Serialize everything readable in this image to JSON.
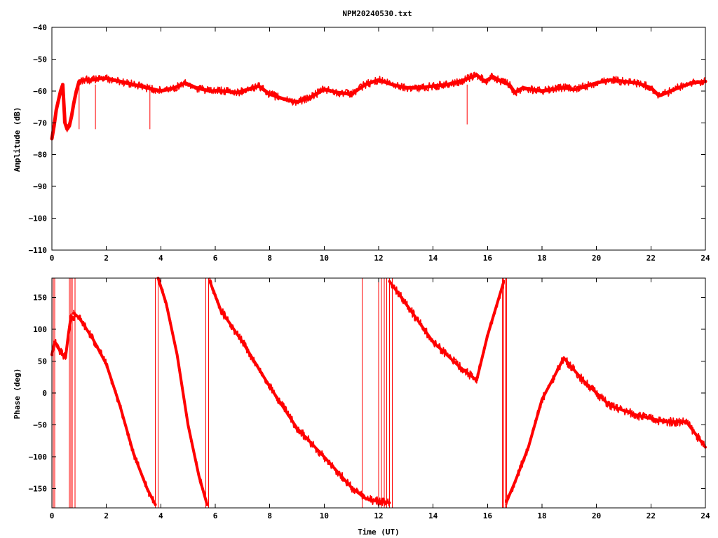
{
  "title": "NPM20240530.txt",
  "colors": {
    "series": "#ff0000",
    "axis": "#000000",
    "background": "#ffffff"
  },
  "chart_data": [
    {
      "type": "line",
      "panel": "amplitude",
      "xlabel": "",
      "ylabel": "Amplitude (dB)",
      "xlim": [
        0,
        24
      ],
      "ylim": [
        -110,
        -40
      ],
      "xticks": [
        0,
        2,
        4,
        6,
        8,
        10,
        12,
        14,
        16,
        18,
        20,
        22,
        24
      ],
      "yticks": [
        -110,
        -100,
        -90,
        -80,
        -70,
        -60,
        -50,
        -40
      ],
      "grid": false,
      "series": [
        {
          "color": "#ff0000",
          "x": [
            0,
            0.08,
            0.16,
            0.24,
            0.32,
            0.4,
            0.48,
            0.56,
            0.64,
            0.72,
            0.8,
            0.9,
            1.0,
            1.2,
            1.5,
            1.8,
            2.0,
            2.5,
            3.0,
            3.5,
            4.0,
            4.5,
            4.9,
            5.3,
            5.8,
            6.3,
            6.8,
            7.2,
            7.6,
            8.0,
            8.5,
            9.0,
            9.5,
            10.0,
            10.5,
            11.0,
            11.5,
            12.0,
            12.5,
            13.0,
            13.5,
            14.0,
            14.5,
            15.0,
            15.3,
            15.6,
            15.9,
            16.2,
            16.5,
            16.8,
            17.0,
            17.3,
            17.6,
            18.0,
            18.4,
            18.8,
            19.2,
            19.6,
            20.0,
            20.5,
            21.0,
            21.5,
            22.0,
            22.3,
            22.6,
            23.0,
            23.5,
            24.0
          ],
          "y": [
            -75,
            -71,
            -66,
            -63,
            -60,
            -58,
            -70,
            -72,
            -71,
            -68,
            -64,
            -60,
            -57,
            -56.5,
            -56.5,
            -56,
            -56,
            -57,
            -58,
            -59,
            -60,
            -59,
            -57.5,
            -59,
            -60,
            -60,
            -60.5,
            -59.5,
            -58.5,
            -61,
            -62.5,
            -63.5,
            -62,
            -59.5,
            -60.5,
            -61,
            -58,
            -56.5,
            -58,
            -59,
            -59,
            -58.5,
            -58,
            -57,
            -56,
            -55,
            -57,
            -55.5,
            -57,
            -58,
            -60.5,
            -59,
            -59.5,
            -60,
            -59.5,
            -59,
            -59.5,
            -58.5,
            -57.5,
            -56.5,
            -57,
            -57.5,
            -59,
            -61.5,
            -60.5,
            -59,
            -57.5,
            -57
          ]
        }
      ],
      "spikes": [
        {
          "x": 0.42,
          "y": -70
        },
        {
          "x": 1.0,
          "y": -72
        },
        {
          "x": 1.6,
          "y": -72
        },
        {
          "x": 3.6,
          "y": -72
        },
        {
          "x": 15.25,
          "y": -70.5
        }
      ]
    },
    {
      "type": "line",
      "panel": "phase",
      "xlabel": "Time (UT)",
      "ylabel": "Phase (deg)",
      "xlim": [
        0,
        24
      ],
      "ylim": [
        -180,
        180
      ],
      "xticks": [
        0,
        2,
        4,
        6,
        8,
        10,
        12,
        14,
        16,
        18,
        20,
        22,
        24
      ],
      "yticks": [
        -150,
        -100,
        -50,
        0,
        50,
        100,
        150
      ],
      "grid": false,
      "series": [
        {
          "color": "#ff0000",
          "x": [
            0.0,
            0.1,
            0.2,
            0.3,
            0.4,
            0.5,
            0.6,
            0.7,
            0.8
          ],
          "y": [
            60,
            80,
            75,
            65,
            60,
            55,
            90,
            120,
            115
          ]
        },
        {
          "color": "#ff0000",
          "x": [
            0.8,
            1.0,
            1.5,
            2.0,
            2.5,
            3.0,
            3.5,
            3.8
          ],
          "y": [
            125,
            118,
            85,
            45,
            -20,
            -95,
            -150,
            -175
          ]
        },
        {
          "color": "#ff0000",
          "x": [
            3.9,
            4.2,
            4.6,
            5.0,
            5.4,
            5.7
          ],
          "y": [
            180,
            140,
            60,
            -50,
            -130,
            -175
          ]
        },
        {
          "color": "#ff0000",
          "x": [
            5.8,
            6.2,
            7.0,
            8.0,
            9.0,
            10.0,
            11.0,
            11.5,
            12.0,
            12.4
          ],
          "y": [
            175,
            130,
            80,
            10,
            -55,
            -100,
            -148,
            -165,
            -170,
            -172
          ]
        },
        {
          "color": "#ff0000",
          "x": [
            12.4,
            13.0,
            14.0,
            15.0,
            15.6,
            16.0,
            16.6
          ],
          "y": [
            175,
            140,
            80,
            40,
            20,
            90,
            175
          ]
        },
        {
          "color": "#ff0000",
          "x": [
            16.7,
            17.0,
            17.5,
            18.0,
            18.5,
            18.8,
            19.5,
            20.5,
            21.5,
            22.5,
            23.3,
            24.0
          ],
          "y": [
            -170,
            -140,
            -85,
            -10,
            30,
            55,
            20,
            -20,
            -35,
            -45,
            -45,
            -85
          ]
        }
      ],
      "glitches": [
        0.0,
        0.05,
        0.1,
        0.65,
        0.7,
        0.75,
        0.85,
        3.8,
        3.9,
        5.65,
        5.75,
        11.4,
        12.0,
        12.1,
        12.2,
        12.3,
        12.4,
        12.5,
        16.55,
        16.6,
        16.65,
        16.7
      ]
    }
  ]
}
